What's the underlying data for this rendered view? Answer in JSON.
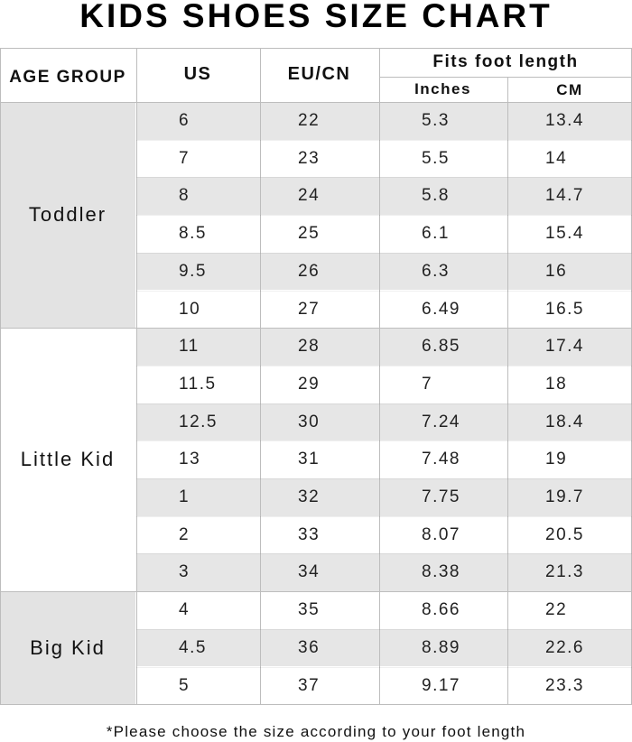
{
  "title": "KIDS SHOES SIZE CHART",
  "headers": {
    "age_group": "AGE GROUP",
    "us": "US",
    "eu_cn": "EU/CN",
    "fits": "Fits foot length",
    "inches": "Inches",
    "cm": "CM"
  },
  "groups": [
    {
      "label": "Toddler",
      "rows": 6
    },
    {
      "label": "Little Kid",
      "rows": 7
    },
    {
      "label": "Big Kid",
      "rows": 3
    }
  ],
  "rows": [
    {
      "us": "6",
      "eu": "22",
      "in": "5.3",
      "cm": "13.4"
    },
    {
      "us": "7",
      "eu": "23",
      "in": "5.5",
      "cm": "14"
    },
    {
      "us": "8",
      "eu": "24",
      "in": "5.8",
      "cm": "14.7"
    },
    {
      "us": "8.5",
      "eu": "25",
      "in": "6.1",
      "cm": "15.4"
    },
    {
      "us": "9.5",
      "eu": "26",
      "in": "6.3",
      "cm": "16"
    },
    {
      "us": "10",
      "eu": "27",
      "in": "6.49",
      "cm": "16.5"
    },
    {
      "us": "11",
      "eu": "28",
      "in": "6.85",
      "cm": "17.4"
    },
    {
      "us": "11.5",
      "eu": "29",
      "in": "7",
      "cm": "18"
    },
    {
      "us": "12.5",
      "eu": "30",
      "in": "7.24",
      "cm": "18.4"
    },
    {
      "us": "13",
      "eu": "31",
      "in": "7.48",
      "cm": "19"
    },
    {
      "us": "1",
      "eu": "32",
      "in": "7.75",
      "cm": "19.7"
    },
    {
      "us": "2",
      "eu": "33",
      "in": "8.07",
      "cm": "20.5"
    },
    {
      "us": "3",
      "eu": "34",
      "in": "8.38",
      "cm": "21.3"
    },
    {
      "us": "4",
      "eu": "35",
      "in": "8.66",
      "cm": "22"
    },
    {
      "us": "4.5",
      "eu": "36",
      "in": "8.89",
      "cm": "22.6"
    },
    {
      "us": "5",
      "eu": "37",
      "in": "9.17",
      "cm": "23.3"
    }
  ],
  "note": "*Please choose the size according to your foot length",
  "colors": {
    "stripe": "#e6e6e6",
    "group_fill": "#e3e3e3",
    "border": "#bdbdbd"
  }
}
